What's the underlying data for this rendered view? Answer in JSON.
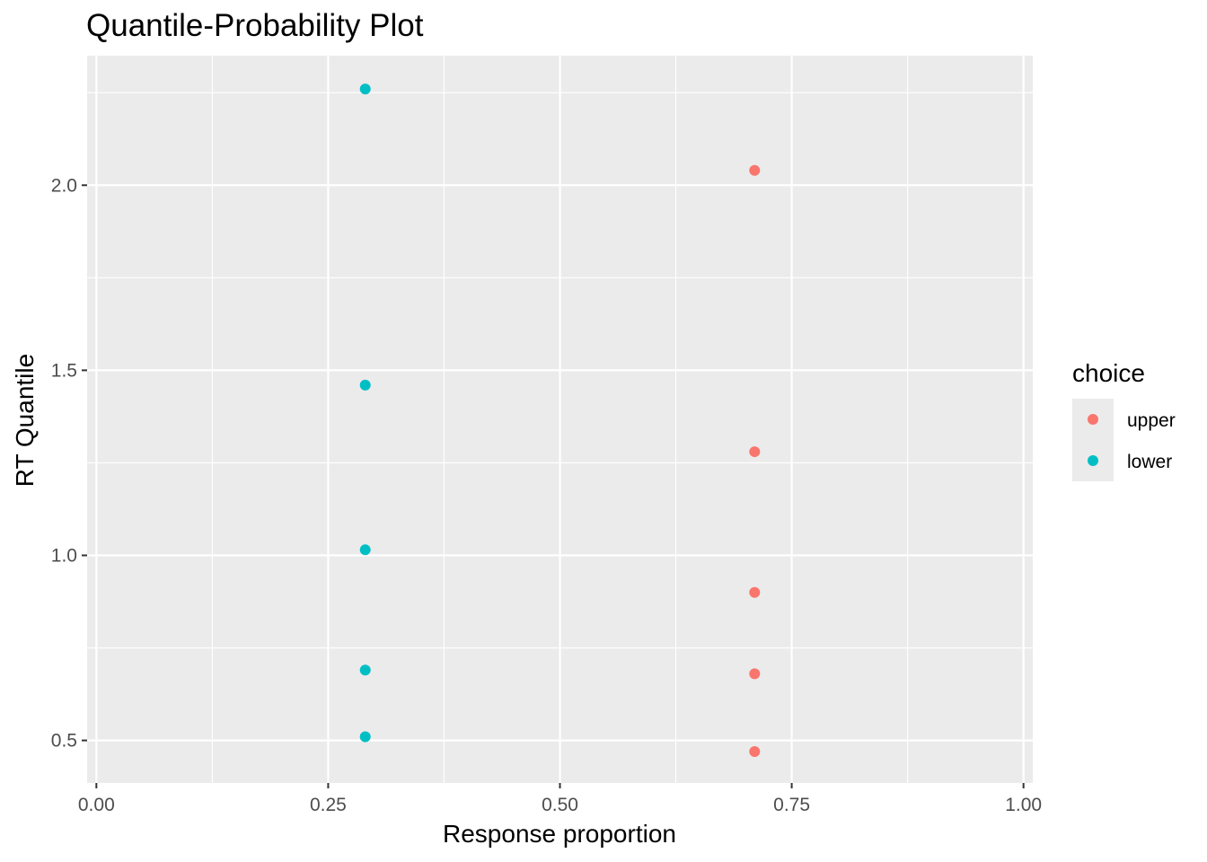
{
  "chart_data": {
    "type": "scatter",
    "title": "Quantile-Probability Plot",
    "xlabel": "Response proportion",
    "ylabel": "RT Quantile",
    "xlim": [
      -0.01,
      1.01
    ],
    "ylim": [
      0.385,
      2.35
    ],
    "x_ticks": [
      0,
      0.25,
      0.5,
      0.75,
      1
    ],
    "x_tick_labels": [
      "0.00",
      "0.25",
      "0.50",
      "0.75",
      "1.00"
    ],
    "x_minor_ticks": [
      0.125,
      0.375,
      0.625,
      0.875
    ],
    "y_ticks": [
      0.5,
      1.0,
      1.5,
      2.0
    ],
    "y_tick_labels": [
      "0.5",
      "1.0",
      "1.5",
      "2.0"
    ],
    "y_minor_ticks": [
      0.75,
      1.25,
      1.75,
      2.25
    ],
    "grid": true,
    "panel_background": "#ebebeb",
    "grid_color": "#ffffff",
    "legend": {
      "title": "choice",
      "placement": "right",
      "entries": [
        {
          "label": "upper",
          "color": "#F8766D"
        },
        {
          "label": "lower",
          "color": "#00BFC4"
        }
      ]
    },
    "series": [
      {
        "name": "upper",
        "color": "#F8766D",
        "x": [
          0.71,
          0.71,
          0.71,
          0.71,
          0.71
        ],
        "y": [
          0.47,
          0.68,
          0.9,
          1.28,
          2.04
        ]
      },
      {
        "name": "lower",
        "color": "#00BFC4",
        "x": [
          0.29,
          0.29,
          0.29,
          0.29,
          0.29
        ],
        "y": [
          0.51,
          0.69,
          1.015,
          1.46,
          2.26
        ]
      }
    ]
  }
}
